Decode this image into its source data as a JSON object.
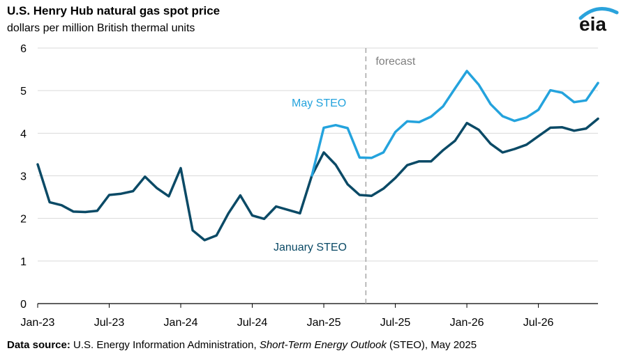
{
  "header": {
    "title": "U.S. Henry Hub natural gas spot price",
    "subtitle": "dollars per million British thermal units",
    "logo_text": "eia"
  },
  "footer": {
    "source_label": "Data source:",
    "source_org": " U.S. Energy Information Administration, ",
    "source_pub": "Short-Term Energy Outlook",
    "source_tail": " (STEO), May 2025"
  },
  "chart_data": {
    "type": "line",
    "title": "U.S. Henry Hub natural gas spot price",
    "ylabel": "dollars per million British thermal units",
    "ylim": [
      0,
      6
    ],
    "yticks": [
      0,
      1,
      2,
      3,
      4,
      5,
      6
    ],
    "xlim": [
      "2023-01",
      "2026-12"
    ],
    "xticks": [
      "2023-01",
      "2023-07",
      "2024-01",
      "2024-07",
      "2025-01",
      "2025-07",
      "2026-01",
      "2026-07"
    ],
    "xtick_labels": [
      "Jan-23",
      "Jul-23",
      "Jan-24",
      "Jul-24",
      "Jan-25",
      "Jul-25",
      "Jan-26",
      "Jul-26"
    ],
    "grid": "horizontal",
    "forecast_start": "2025-05",
    "forecast_label": "forecast",
    "series": [
      {
        "name": "January STEO",
        "color": "#0b4a66",
        "x": [
          "2023-01",
          "2023-02",
          "2023-03",
          "2023-04",
          "2023-05",
          "2023-06",
          "2023-07",
          "2023-08",
          "2023-09",
          "2023-10",
          "2023-11",
          "2023-12",
          "2024-01",
          "2024-02",
          "2024-03",
          "2024-04",
          "2024-05",
          "2024-06",
          "2024-07",
          "2024-08",
          "2024-09",
          "2024-10",
          "2024-11",
          "2024-12",
          "2025-01",
          "2025-02",
          "2025-03",
          "2025-04",
          "2025-05",
          "2025-06",
          "2025-07",
          "2025-08",
          "2025-09",
          "2025-10",
          "2025-11",
          "2025-12",
          "2026-01",
          "2026-02",
          "2026-03",
          "2026-04",
          "2026-05",
          "2026-06",
          "2026-07",
          "2026-08",
          "2026-09",
          "2026-10",
          "2026-11",
          "2026-12"
        ],
        "values": [
          3.27,
          2.38,
          2.31,
          2.16,
          2.15,
          2.18,
          2.55,
          2.58,
          2.64,
          2.98,
          2.71,
          2.52,
          3.18,
          1.72,
          1.49,
          1.6,
          2.12,
          2.54,
          2.07,
          1.99,
          2.28,
          2.2,
          2.12,
          3.01,
          3.55,
          3.26,
          2.8,
          2.55,
          2.53,
          2.7,
          2.95,
          3.25,
          3.34,
          3.34,
          3.6,
          3.82,
          4.24,
          4.08,
          3.75,
          3.55,
          3.63,
          3.73,
          3.93,
          4.13,
          4.14,
          4.06,
          4.11,
          4.34
        ]
      },
      {
        "name": "May STEO",
        "color": "#24a3dd",
        "x": [
          "2024-12",
          "2025-01",
          "2025-02",
          "2025-03",
          "2025-04",
          "2025-05",
          "2025-06",
          "2025-07",
          "2025-08",
          "2025-09",
          "2025-10",
          "2025-11",
          "2025-12",
          "2026-01",
          "2026-02",
          "2026-03",
          "2026-04",
          "2026-05",
          "2026-06",
          "2026-07",
          "2026-08",
          "2026-09",
          "2026-10",
          "2026-11",
          "2026-12"
        ],
        "values": [
          3.01,
          4.13,
          4.19,
          4.12,
          3.43,
          3.42,
          3.55,
          4.03,
          4.28,
          4.26,
          4.39,
          4.63,
          5.05,
          5.46,
          5.14,
          4.68,
          4.4,
          4.29,
          4.37,
          4.55,
          5.01,
          4.95,
          4.73,
          4.77,
          5.18
        ]
      }
    ],
    "annotations": [
      "May STEO",
      "January STEO"
    ]
  }
}
